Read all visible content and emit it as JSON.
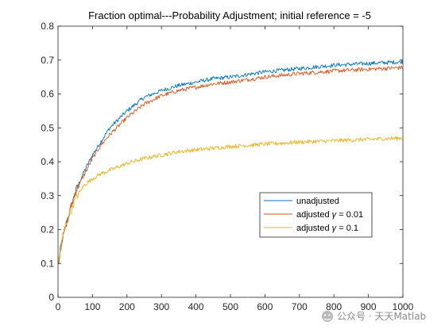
{
  "chart_data": {
    "type": "line",
    "title": "Fraction optimal---Probability Adjustment; initial reference = -5",
    "xlabel": "",
    "ylabel": "",
    "xlim": [
      0,
      1000
    ],
    "ylim": [
      0,
      0.8
    ],
    "xticks": [
      "0",
      "100",
      "200",
      "300",
      "400",
      "500",
      "600",
      "700",
      "800",
      "900",
      "1000"
    ],
    "yticks": [
      "0",
      "0.1",
      "0.2",
      "0.3",
      "0.4",
      "0.5",
      "0.6",
      "0.7",
      "0.8"
    ],
    "grid": false,
    "legend_position": "right",
    "x": [
      1,
      10,
      25,
      50,
      75,
      100,
      125,
      150,
      200,
      250,
      300,
      350,
      400,
      450,
      500,
      600,
      700,
      800,
      900,
      1000
    ],
    "series": [
      {
        "name": "unadjusted",
        "color": "#0072BD",
        "values": [
          0.1,
          0.16,
          0.22,
          0.31,
          0.37,
          0.42,
          0.46,
          0.5,
          0.55,
          0.59,
          0.61,
          0.625,
          0.635,
          0.645,
          0.65,
          0.665,
          0.675,
          0.685,
          0.69,
          0.695
        ]
      },
      {
        "name": "adjusted γ = 0.01",
        "legend_prefix": "adjusted ",
        "legend_symbol": "γ",
        "legend_suffix": " = 0.01",
        "color": "#D95319",
        "values": [
          0.1,
          0.16,
          0.22,
          0.31,
          0.36,
          0.41,
          0.45,
          0.48,
          0.53,
          0.57,
          0.595,
          0.61,
          0.62,
          0.63,
          0.635,
          0.65,
          0.66,
          0.668,
          0.673,
          0.678
        ]
      },
      {
        "name": "adjusted γ = 0.1",
        "legend_prefix": "adjusted ",
        "legend_symbol": "γ",
        "legend_suffix": " = 0.1",
        "color": "#EDB120",
        "values": [
          0.1,
          0.16,
          0.22,
          0.29,
          0.33,
          0.35,
          0.365,
          0.375,
          0.395,
          0.41,
          0.42,
          0.43,
          0.435,
          0.44,
          0.445,
          0.452,
          0.458,
          0.462,
          0.466,
          0.47
        ]
      }
    ]
  },
  "watermark": {
    "icon": "wechat-icon",
    "text": "公众号 · 天天Matlab"
  }
}
